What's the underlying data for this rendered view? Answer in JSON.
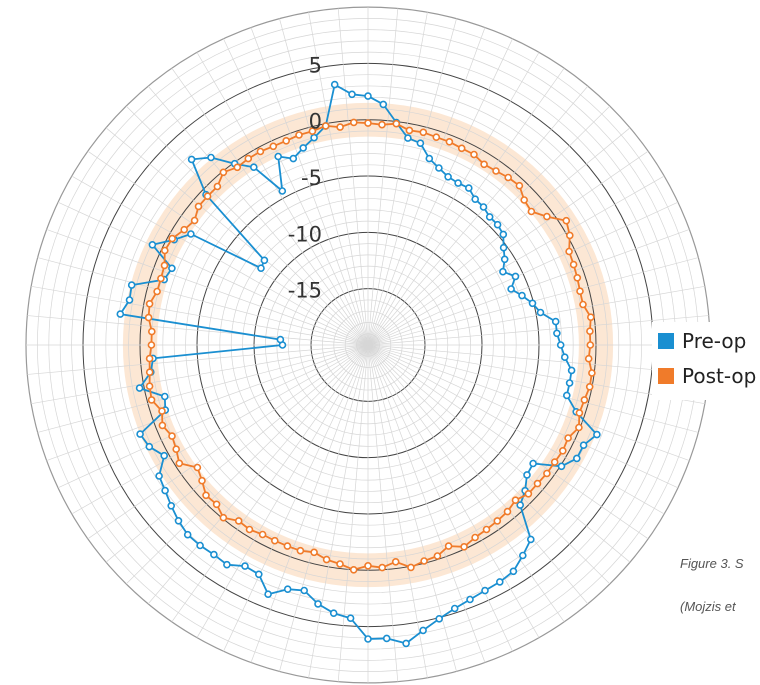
{
  "chart_data": {
    "type": "polar-line",
    "radial_ticks": [
      "5",
      "0",
      "-5",
      "-10",
      "-15"
    ],
    "radial_range": [
      -20,
      10
    ],
    "reference_band": [
      -1.5,
      1.5
    ],
    "grid": true,
    "legend_position": "right",
    "series": [
      {
        "name": "Pre-op",
        "color": "#1a8fd1",
        "values": [
          2.1,
          1.4,
          -0.1,
          -1.3,
          -1.5,
          -2.6,
          -3.1,
          -3.5,
          -3.6,
          -3.5,
          -4.0,
          -4.1,
          -4.4,
          -4.4,
          -4.6,
          -5.3,
          -5.8,
          -6.5,
          -5.7,
          -6.5,
          -5.8,
          -5.1,
          -4.6,
          -3.4,
          -3.4,
          -3.1,
          -2.7,
          -2.0,
          -2.0,
          -2.0,
          -0.8,
          1.6,
          0.9,
          0.9,
          0.1,
          -2.1,
          -1.9,
          -1.1,
          -0.5,
          2.4,
          3.1,
          3.8,
          4.0,
          4.1,
          4.3,
          4.6,
          5.1,
          5.8,
          6.7,
          6.1,
          6.1,
          4.3,
          4.0,
          3.4,
          2.5,
          2.8,
          3.8,
          2.5,
          2.4,
          3.1,
          3.0,
          3.1,
          3.1,
          2.8,
          2.4,
          2.0,
          1.7,
          0.4,
          1.2,
          1.5,
          -1.3,
          -1.6,
          0.4,
          -0.8,
          -1.1,
          -12.5,
          -12.3,
          1.9,
          1.3,
          1.4,
          -1.2,
          -1.5,
          0.9,
          -0.6,
          -1.6,
          -8.4,
          -8.2,
          -0.5,
          2.6,
          1.6,
          -0.1,
          -1.3,
          -4.4,
          -1.5,
          -2.2,
          -1.6,
          -1.0,
          -0.2,
          3.3,
          2.3
        ]
      },
      {
        "name": "Post-op",
        "color": "#f07b2a",
        "values": [
          -0.3,
          -0.4,
          -0.2,
          -0.6,
          -0.5,
          -0.6,
          -0.6,
          -0.7,
          -0.7,
          -1.0,
          -0.9,
          -0.7,
          -0.6,
          -1.2,
          -1.4,
          -0.6,
          0.6,
          0.2,
          -0.5,
          -0.6,
          -0.7,
          -0.8,
          -0.8,
          -0.3,
          -0.5,
          -0.5,
          -0.6,
          -0.2,
          -0.2,
          -0.4,
          -0.5,
          -0.1,
          -0.6,
          -0.5,
          -0.6,
          -0.6,
          -0.7,
          -0.7,
          -1.1,
          -0.8,
          -0.7,
          -0.6,
          -0.5,
          -0.2,
          -0.8,
          -0.3,
          -0.2,
          0.1,
          -0.6,
          -0.2,
          -0.4,
          0.0,
          -0.4,
          -0.6,
          -1.0,
          -0.8,
          -0.8,
          -0.8,
          -0.8,
          -0.6,
          -0.7,
          -0.1,
          -0.6,
          -0.5,
          -1.1,
          -1.5,
          -0.4,
          -0.8,
          -1.0,
          -0.6,
          -1.0,
          -0.4,
          -0.5,
          -0.7,
          -0.8,
          -1.0,
          -1.0,
          -0.6,
          -0.5,
          -0.9,
          -0.9,
          -0.8,
          -0.3,
          -0.4,
          -0.9,
          -1.2,
          -0.7,
          -0.7,
          -0.7,
          -0.1,
          -0.5,
          -0.4,
          -0.4,
          -0.5,
          -0.5,
          -0.4,
          -0.4,
          -0.2,
          -0.5,
          -0.2
        ]
      }
    ]
  },
  "legend": {
    "items": [
      {
        "label": "Pre-op",
        "color": "#1a8fd1"
      },
      {
        "label": "Post-op",
        "color": "#f07b2a"
      }
    ]
  },
  "caption": {
    "line1": "Figure 3. S",
    "line2": "(Mojzis et"
  }
}
